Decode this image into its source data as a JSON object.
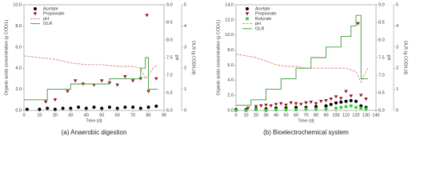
{
  "chart_data": [
    {
      "type": "line",
      "caption": "(a) Anaerobic digestion",
      "x_label": "Time (d)",
      "y_label": "Organic acids concentration (g COD/L)",
      "y2_label": "pH",
      "y3_label": "OLR (g COD/L/d)",
      "xlim": [
        0,
        90
      ],
      "xticks": [
        0,
        10,
        20,
        30,
        40,
        50,
        60,
        70,
        80,
        90
      ],
      "ylim": [
        0,
        10
      ],
      "yticks": [
        {
          "value": 0,
          "label": "0.0"
        },
        {
          "value": 2,
          "label": "2.0"
        },
        {
          "value": 4,
          "label": "4.0"
        },
        {
          "value": 6,
          "label": "6.0"
        },
        {
          "value": 8,
          "label": "8.0"
        },
        {
          "value": 10,
          "label": "10.0"
        }
      ],
      "y2lim": [
        6,
        9
      ],
      "y2ticks": [
        {
          "value": 6,
          "label": "6.0"
        },
        {
          "value": 6.5,
          "label": "6.5"
        },
        {
          "value": 7,
          "label": "7.0"
        },
        {
          "value": 7.5,
          "label": "7.5"
        },
        {
          "value": 8,
          "label": "8.0"
        },
        {
          "value": 8.5,
          "label": "8.5"
        },
        {
          "value": 9,
          "label": "9.0"
        }
      ],
      "y3lim": [
        0,
        5
      ],
      "y3ticks": [
        0,
        1,
        2,
        3,
        4,
        5
      ],
      "series": [
        {
          "name": "Acetate",
          "mark": "circle",
          "color": "#000000",
          "x": [
            2,
            10,
            15,
            20,
            25,
            30,
            35,
            40,
            45,
            50,
            55,
            60,
            65,
            70,
            75,
            80,
            85
          ],
          "values": [
            0.1,
            0.1,
            0.2,
            0.1,
            0.2,
            0.2,
            0.3,
            0.2,
            0.3,
            0.2,
            0.3,
            0.2,
            0.3,
            0.3,
            0.2,
            0.3,
            0.4
          ]
        },
        {
          "name": "Propionate",
          "mark": "triangle",
          "color": "#8b1a1a",
          "x": [
            14,
            20,
            28,
            33,
            38,
            45,
            50,
            55,
            60,
            65,
            70,
            75,
            79,
            80,
            85
          ],
          "values": [
            0.8,
            1.0,
            1.8,
            2.8,
            2.5,
            2.4,
            2.8,
            2.6,
            2.4,
            3.2,
            2.8,
            3.0,
            9.0,
            1.8,
            3.0
          ]
        },
        {
          "name": "pH",
          "mark": "dashed",
          "axis": "y2",
          "color": "#d98080",
          "x": [
            0,
            10,
            20,
            30,
            40,
            50,
            60,
            70,
            75,
            78,
            80,
            83,
            86
          ],
          "values": [
            7.55,
            7.5,
            7.45,
            7.35,
            7.3,
            7.3,
            7.25,
            7.25,
            7.2,
            6.9,
            7.0,
            7.2,
            7.3
          ]
        },
        {
          "name": "OLR",
          "mark": "solid",
          "axis": "y3",
          "color": "#3a9a3a",
          "x": [
            0,
            15,
            15,
            30,
            30,
            55,
            55,
            75,
            75,
            78,
            78,
            80,
            80,
            86
          ],
          "values": [
            0.5,
            0.5,
            1.0,
            1.0,
            1.25,
            1.25,
            1.5,
            1.5,
            2.0,
            2.0,
            2.5,
            2.5,
            1.0,
            1.0
          ]
        }
      ]
    },
    {
      "type": "line",
      "caption": "(b) Bioelectrochemical system",
      "x_label": "Time (d)",
      "y_label": "Organic acids concentration (g COD/L)",
      "y2_label": "pH",
      "y3_label": "OLR (g COD/L/d)",
      "xlim": [
        0,
        140
      ],
      "xticks": [
        0,
        10,
        20,
        30,
        40,
        50,
        60,
        70,
        80,
        90,
        100,
        110,
        120,
        130,
        140
      ],
      "ylim": [
        0,
        14
      ],
      "yticks": [
        {
          "value": 0,
          "label": "0.0"
        },
        {
          "value": 2,
          "label": "2.0"
        },
        {
          "value": 4,
          "label": "4.0"
        },
        {
          "value": 6,
          "label": "6.0"
        },
        {
          "value": 8,
          "label": "8.0"
        },
        {
          "value": 10,
          "label": "10.0"
        },
        {
          "value": 12,
          "label": "12.0"
        },
        {
          "value": 14,
          "label": "14.0"
        }
      ],
      "y2lim": [
        6,
        9
      ],
      "y2ticks": [
        {
          "value": 6,
          "label": "6.0"
        },
        {
          "value": 6.5,
          "label": "6.5"
        },
        {
          "value": 7,
          "label": "7.0"
        },
        {
          "value": 7.5,
          "label": "7.5"
        },
        {
          "value": 8,
          "label": "8.0"
        },
        {
          "value": 8.5,
          "label": "8.5"
        },
        {
          "value": 9,
          "label": "9.0"
        }
      ],
      "y3lim": [
        0,
        5
      ],
      "y3ticks": [
        0,
        1,
        2,
        3,
        4,
        5
      ],
      "series": [
        {
          "name": "Acetate",
          "mark": "circle",
          "color": "#000000",
          "x": [
            0,
            10,
            20,
            30,
            40,
            50,
            60,
            70,
            80,
            90,
            95,
            100,
            105,
            110,
            115,
            120,
            125,
            130
          ],
          "values": [
            0.1,
            0.1,
            0.2,
            0.2,
            0.3,
            0.3,
            0.4,
            0.4,
            0.5,
            0.6,
            0.8,
            1.0,
            1.1,
            1.2,
            1.3,
            1.2,
            0.6,
            0.4
          ]
        },
        {
          "name": "Propionate",
          "mark": "triangle",
          "color": "#8b1a1a",
          "x": [
            12,
            20,
            25,
            30,
            35,
            40,
            45,
            50,
            55,
            60,
            65,
            70,
            75,
            80,
            85,
            90,
            95,
            100,
            105,
            110,
            115,
            122,
            125,
            130
          ],
          "values": [
            0.3,
            0.5,
            0.6,
            0.7,
            0.6,
            0.8,
            0.9,
            0.7,
            1.0,
            0.9,
            0.8,
            1.0,
            1.1,
            0.9,
            1.2,
            1.3,
            1.5,
            1.8,
            1.6,
            2.5,
            1.9,
            11.5,
            2.0,
            1.5
          ]
        },
        {
          "name": "Butyrate",
          "mark": "square",
          "color": "#33cc33",
          "x": [
            0,
            10,
            20,
            30,
            40,
            50,
            60,
            70,
            80,
            90,
            100,
            105,
            110,
            115,
            120,
            125,
            130
          ],
          "values": [
            0,
            0,
            0.1,
            0,
            0.1,
            0.1,
            0.1,
            0.2,
            0.2,
            0.2,
            0.3,
            0.4,
            0.5,
            0.6,
            0.4,
            0.3,
            0.2
          ]
        },
        {
          "name": "pH",
          "mark": "dashed",
          "axis": "y2",
          "color": "#d98080",
          "x": [
            0,
            10,
            20,
            30,
            40,
            50,
            60,
            70,
            80,
            90,
            100,
            110,
            120,
            125,
            128,
            132
          ],
          "values": [
            7.6,
            7.55,
            7.5,
            7.4,
            7.3,
            7.25,
            7.25,
            7.2,
            7.2,
            7.2,
            7.2,
            7.2,
            7.1,
            6.8,
            7.0,
            7.2
          ]
        },
        {
          "name": "OLR",
          "mark": "solid",
          "axis": "y3",
          "color": "#3a9a3a",
          "x": [
            0,
            15,
            15,
            30,
            30,
            45,
            45,
            60,
            60,
            75,
            75,
            90,
            90,
            105,
            105,
            115,
            115,
            120,
            120,
            125,
            125,
            132
          ],
          "values": [
            0.25,
            0.25,
            0.5,
            0.5,
            1.0,
            1.0,
            1.5,
            1.5,
            2.0,
            2.0,
            2.5,
            2.5,
            3.0,
            3.0,
            3.5,
            3.5,
            4.0,
            4.0,
            4.5,
            4.5,
            1.5,
            1.5
          ]
        }
      ]
    }
  ]
}
